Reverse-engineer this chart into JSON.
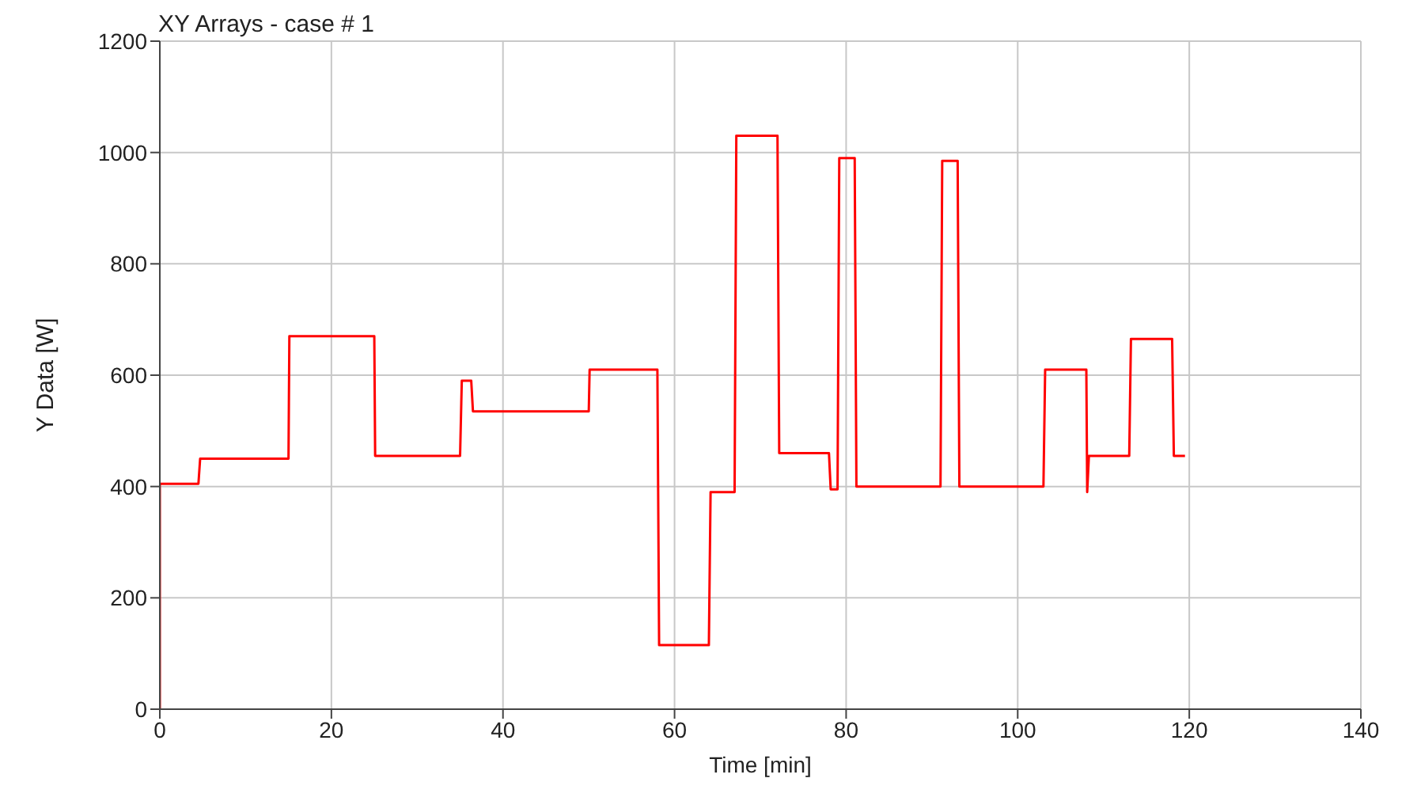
{
  "chart_data": {
    "type": "line",
    "title": "XY Arrays - case # 1",
    "xlabel": "Time [min]",
    "ylabel": "Y Data [W]",
    "x": [
      0,
      0,
      4.5,
      4.7,
      15,
      15.1,
      25,
      25.1,
      35,
      35.2,
      36.3,
      36.5,
      50,
      50.1,
      58,
      58.2,
      64,
      64.2,
      67,
      67.2,
      72,
      72.2,
      78,
      78.2,
      79,
      79.2,
      81,
      81.2,
      91,
      91.2,
      93,
      93.2,
      103,
      103.2,
      108,
      108.1,
      108.3,
      113,
      113.2,
      118,
      118.2,
      119.5
    ],
    "series": [
      {
        "color": "#ff0000",
        "values": [
          0,
          405,
          405,
          450,
          450,
          670,
          670,
          455,
          455,
          590,
          590,
          535,
          535,
          610,
          610,
          115,
          115,
          390,
          390,
          1030,
          1030,
          460,
          460,
          395,
          395,
          990,
          990,
          400,
          400,
          985,
          985,
          400,
          400,
          610,
          610,
          390,
          455,
          455,
          665,
          665,
          455,
          455
        ]
      }
    ],
    "xlim": [
      0,
      140
    ],
    "xticks": [
      0,
      20,
      40,
      60,
      80,
      100,
      120,
      140
    ],
    "ylim": [
      0,
      1200
    ],
    "yticks": [
      0,
      200,
      400,
      600,
      800,
      1000,
      1200
    ],
    "grid": true,
    "marker": "none",
    "line_style": "solid"
  }
}
